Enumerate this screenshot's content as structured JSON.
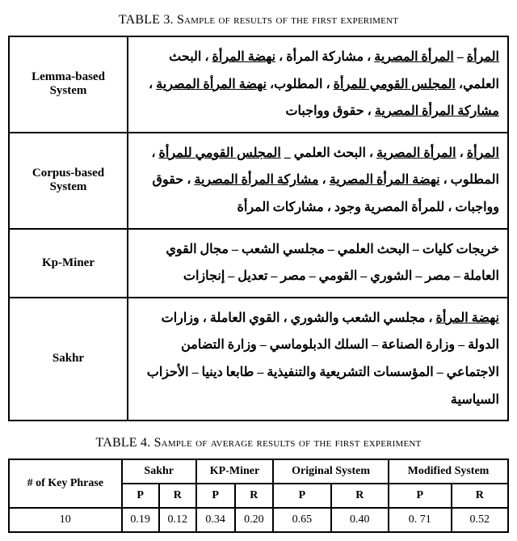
{
  "table3": {
    "caption": "TABLE 3. Sample of results of the first experiment",
    "rows": [
      {
        "label": "Lemma-based System",
        "html": "<span class='u'>المرأة</span> – <span class='u'>المرأة المصرية</span> ، مشاركة المرأة ، <span class='u'>نهضة المرأة</span> ، البحث العلمي، <span class='u'>المجلس القومي للمرأة</span> ، المطلوب، <span class='u'>نهضة المرأة المصرية</span> ، <span class='u'>مشاركة المرأة المصرية</span> ، حقوق وواجبات"
      },
      {
        "label": "Corpus-based System",
        "html": "<span class='u'>المرأة</span> ، <span class='u'>المرأة المصرية</span> ، البحث العلمي _ <span class='u'>المجلس القومي للمرأة</span> ، المطلوب ، <span class='u'>نهضة المرأة المصرية</span> ، <span class='u'>مشاركة المرأة المصرية</span> ، حقوق وواجبات ، للمرأة المصرية وجود ، <b>مشاركات المرأة</b>"
      },
      {
        "label": "Kp-Miner",
        "html": "خريجات كليات – البحث العلمي – مجلسي الشعب – مجال القوي العاملة – مصر  –  الشوري – القومي – مصر –  تعديل – إنجازات"
      },
      {
        "label": "Sakhr",
        "html": "<span class='u'>نهضة المرأة</span> ، مجلسي الشعب والشوري ، القوي العاملة ، وزارات الدولة – وزارة الصناعة  –  السلك الدبلوماسي –  وزارة التضامن الاجتماعي  – المؤسسات التشريعية والتنفيذية – طابعا دينيا – الأحزاب السياسية"
      }
    ]
  },
  "table4": {
    "caption": "TABLE 4. Sample of average results of the first experiment",
    "header_groups": [
      "# of Key Phrase",
      "Sakhr",
      "KP-Miner",
      "Original System",
      "Modified System"
    ],
    "subheaders": [
      "P",
      "R",
      "P",
      "R",
      "P",
      "R",
      "P",
      "R"
    ],
    "row": {
      "n": "10",
      "cells": [
        "0.19",
        "0.12",
        "0.34",
        "0.20",
        "0.65",
        "0.40",
        "0. 71",
        "0.52"
      ]
    }
  }
}
